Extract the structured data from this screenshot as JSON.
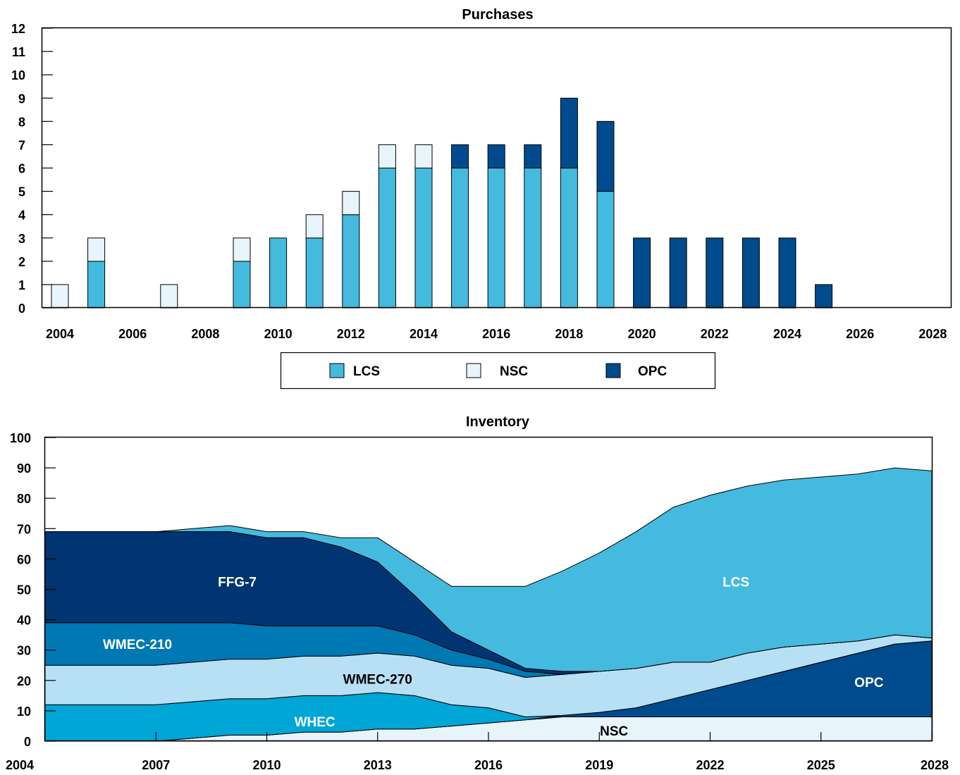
{
  "colors": {
    "LCS": "#45badf",
    "NSC": "#e8f4fc",
    "OPC": "#004b8d",
    "WHEC": "#00a6d6",
    "WMEC-270": "#b7e0f5",
    "WMEC-210": "#0078b4",
    "FFG-7": "#003472"
  },
  "chart_data": [
    {
      "type": "bar",
      "stacked": true,
      "title": "Purchases",
      "categories": [
        2004,
        2005,
        2006,
        2007,
        2008,
        2009,
        2010,
        2011,
        2012,
        2013,
        2014,
        2015,
        2016,
        2017,
        2018,
        2019,
        2020,
        2021,
        2022,
        2023,
        2024,
        2025,
        2026,
        2027,
        2028
      ],
      "x_tick_labels": [
        "2004",
        "2006",
        "2008",
        "2010",
        "2012",
        "2014",
        "2016",
        "2018",
        "2020",
        "2022",
        "2024",
        "2026",
        "2028"
      ],
      "y_tick_labels": [
        "0",
        "1",
        "2",
        "3",
        "4",
        "5",
        "6",
        "7",
        "8",
        "9",
        "10",
        "11",
        "12"
      ],
      "ylim": [
        0,
        12
      ],
      "grid": false,
      "legend_position": "bottom",
      "legend": [
        "LCS",
        "NSC",
        "OPC"
      ],
      "series": [
        {
          "name": "LCS",
          "values": [
            0,
            2,
            0,
            0,
            0,
            2,
            3,
            3,
            4,
            6,
            6,
            6,
            6,
            6,
            6,
            5,
            0,
            0,
            0,
            0,
            0,
            0,
            0,
            0,
            0
          ]
        },
        {
          "name": "NSC",
          "values": [
            1,
            1,
            0,
            1,
            0,
            1,
            0,
            1,
            1,
            1,
            1,
            0,
            0,
            0,
            0,
            0,
            0,
            0,
            0,
            0,
            0,
            0,
            0,
            0,
            0
          ]
        },
        {
          "name": "OPC",
          "values": [
            0,
            0,
            0,
            0,
            0,
            0,
            0,
            0,
            0,
            0,
            0,
            1,
            1,
            1,
            3,
            3,
            3,
            3,
            3,
            3,
            3,
            1,
            0,
            0,
            0
          ]
        }
      ]
    },
    {
      "type": "area",
      "stacked": true,
      "title": "Inventory",
      "x": [
        2004,
        2005,
        2006,
        2007,
        2008,
        2009,
        2010,
        2011,
        2012,
        2013,
        2014,
        2015,
        2016,
        2017,
        2018,
        2019,
        2020,
        2021,
        2022,
        2023,
        2024,
        2025,
        2026,
        2027,
        2028
      ],
      "x_tick_labels": [
        "2004",
        "2007",
        "2010",
        "2013",
        "2016",
        "2019",
        "2022",
        "2025",
        "2028"
      ],
      "y_tick_labels": [
        "0",
        "10",
        "20",
        "30",
        "40",
        "50",
        "60",
        "70",
        "80",
        "90",
        "100"
      ],
      "ylim": [
        0,
        100
      ],
      "grid": false,
      "series": [
        {
          "name": "NSC",
          "label": "NSC",
          "values": [
            0,
            0,
            0,
            0,
            1,
            2,
            2,
            3,
            3,
            4,
            4,
            5,
            6,
            7,
            8,
            8,
            8,
            8,
            8,
            8,
            8,
            8,
            8,
            8,
            8
          ]
        },
        {
          "name": "OPC",
          "label": "OPC",
          "values": [
            0,
            0,
            0,
            0,
            0,
            0,
            0,
            0,
            0,
            0,
            0,
            0,
            0,
            0,
            0.5,
            1.5,
            3,
            6,
            9,
            12,
            15,
            18,
            21,
            24,
            25
          ]
        },
        {
          "name": "WHEC",
          "label": "WHEC",
          "values": [
            12,
            12,
            12,
            12,
            12,
            12,
            12,
            12,
            12,
            12,
            11,
            7,
            5,
            1,
            0,
            0,
            0,
            0,
            0,
            0,
            0,
            0,
            0,
            0,
            0
          ]
        },
        {
          "name": "WMEC-270",
          "label": "WMEC-270",
          "values": [
            13,
            13,
            13,
            13,
            13,
            13,
            13,
            13,
            13,
            13,
            13,
            13,
            13,
            13,
            13.5,
            13.5,
            13,
            12,
            9,
            9,
            8,
            6,
            4,
            3,
            1
          ]
        },
        {
          "name": "WMEC-210",
          "label": "WMEC-210",
          "values": [
            14,
            14,
            14,
            14,
            13,
            12,
            11,
            10,
            10,
            9,
            7,
            5,
            3,
            2,
            0,
            0,
            0,
            0,
            0,
            0,
            0,
            0,
            0,
            0,
            0
          ]
        },
        {
          "name": "FFG-7",
          "label": "FFG-7",
          "values": [
            30,
            30,
            30,
            30,
            30,
            30,
            29,
            29,
            26,
            21,
            13,
            6,
            3,
            1,
            1,
            0,
            0,
            0,
            0,
            0,
            0,
            0,
            0,
            0,
            0
          ]
        },
        {
          "name": "LCS",
          "label": "LCS",
          "values": [
            0,
            0,
            0,
            0,
            1,
            2,
            2,
            2,
            3,
            8,
            11,
            15,
            21,
            27,
            33,
            39,
            45,
            51,
            55,
            55,
            55,
            55,
            55,
            55,
            55
          ]
        }
      ]
    }
  ]
}
